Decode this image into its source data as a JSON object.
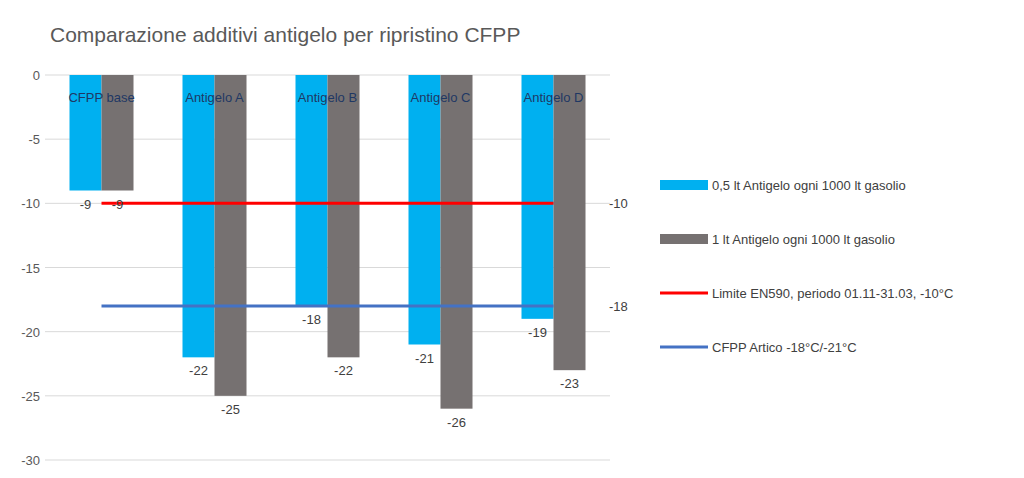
{
  "chart_data": {
    "type": "bar",
    "title": "Comparazione additivi antigelo per ripristino CFPP",
    "categories": [
      "CFPP base",
      "Antigelo A",
      "Antigelo B",
      "Antigelo C",
      "Antigelo D"
    ],
    "series": [
      {
        "name": "0,5 lt Antigelo ogni 1000 lt gasolio",
        "color": "#00b0f0",
        "values": [
          -9,
          -22,
          -18,
          -21,
          -19
        ]
      },
      {
        "name": "1 lt Antigelo ogni 1000 lt gasolio",
        "color": "#767171",
        "values": [
          -9,
          -25,
          -22,
          -26,
          -23
        ]
      },
      {
        "name": "Limite EN590, periodo 01.11-31.03, -10°C",
        "type": "line",
        "color": "#ff0000",
        "values": [
          -10,
          -10,
          -10,
          -10,
          -10
        ]
      },
      {
        "name": "CFPP Artico -18°C/-21°C",
        "type": "line",
        "color": "#4472c4",
        "values": [
          -18,
          -18,
          -18,
          -18,
          -18
        ]
      }
    ],
    "ylim": [
      -30,
      0
    ],
    "yticks": [
      0,
      -5,
      -10,
      -15,
      -20,
      -25,
      -30
    ],
    "grid": true,
    "legend": "right",
    "data_labels": true
  }
}
